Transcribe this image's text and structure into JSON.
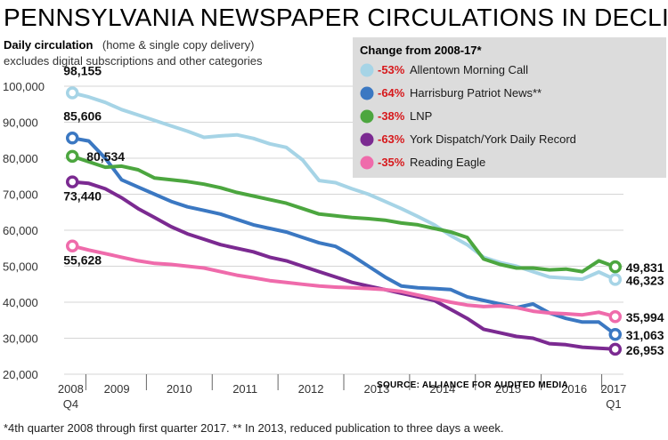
{
  "chart_data": {
    "type": "line",
    "title": "PENNSYLVANIA NEWSPAPER CIRCULATIONS IN DECLINE",
    "subtitle_bold": "Daily circulation",
    "subtitle_rest": "(home & single copy delivery)",
    "subtitle_line2": "excludes digital subscriptions and other categories",
    "ylim": [
      20000,
      100000
    ],
    "y_ticks": [
      20000,
      30000,
      40000,
      50000,
      60000,
      70000,
      80000,
      90000,
      100000
    ],
    "y_tick_labels": [
      "20,000",
      "30,000",
      "40,000",
      "50,000",
      "60,000",
      "70,000",
      "80,000",
      "90,000",
      "100,000"
    ],
    "xlim": [
      2008.75,
      2017.25
    ],
    "x_ticks": [
      {
        "x": 2008.85,
        "label": "2008",
        "sub": "Q4"
      },
      {
        "x": 2009.55,
        "label": "2009",
        "sub": ""
      },
      {
        "x": 2010.5,
        "label": "2010",
        "sub": ""
      },
      {
        "x": 2011.5,
        "label": "2011",
        "sub": ""
      },
      {
        "x": 2012.5,
        "label": "2012",
        "sub": ""
      },
      {
        "x": 2013.5,
        "label": "2013",
        "sub": ""
      },
      {
        "x": 2014.5,
        "label": "2014",
        "sub": ""
      },
      {
        "x": 2015.5,
        "label": "2015",
        "sub": ""
      },
      {
        "x": 2016.5,
        "label": "2016",
        "sub": ""
      },
      {
        "x": 2017.1,
        "label": "2017",
        "sub": "Q1"
      }
    ],
    "x_dividers": [
      2009.08,
      2010.0,
      2011.0,
      2012.0,
      2013.0,
      2014.0,
      2015.0,
      2016.0,
      2016.92
    ],
    "x": [
      2008.875,
      2009.125,
      2009.375,
      2009.625,
      2009.875,
      2010.125,
      2010.375,
      2010.625,
      2010.875,
      2011.125,
      2011.375,
      2011.625,
      2011.875,
      2012.125,
      2012.375,
      2012.625,
      2012.875,
      2013.125,
      2013.375,
      2013.625,
      2013.875,
      2014.125,
      2014.375,
      2014.625,
      2014.875,
      2015.125,
      2015.375,
      2015.625,
      2015.875,
      2016.125,
      2016.375,
      2016.625,
      2016.875,
      2017.125
    ],
    "series": [
      {
        "name": "Allentown Morning Call",
        "color": "#a6d4e6",
        "pct": "-53%",
        "values": [
          98155,
          97000,
          95500,
          93500,
          92000,
          90500,
          89000,
          87500,
          85800,
          86200,
          86500,
          85500,
          84000,
          83000,
          79500,
          73800,
          73200,
          71500,
          70000,
          68000,
          66000,
          63800,
          61500,
          58500,
          56000,
          52500,
          51000,
          50000,
          48500,
          47000,
          46700,
          46400,
          48400,
          46323
        ],
        "start_label": "98,155",
        "end_label": "46,323"
      },
      {
        "name": "Harrisburg Patriot News**",
        "color": "#3b78c2",
        "pct": "-64%",
        "values": [
          85606,
          84800,
          80000,
          74000,
          72000,
          70000,
          68000,
          66500,
          65500,
          64500,
          63000,
          61500,
          60500,
          59500,
          58000,
          56500,
          55500,
          53000,
          50000,
          47000,
          44500,
          44000,
          43800,
          43500,
          41500,
          40500,
          39500,
          38500,
          39500,
          37000,
          35500,
          34500,
          34500,
          31063
        ],
        "start_label": "85,606",
        "end_label": "31,063"
      },
      {
        "name": "LNP",
        "color": "#4ca63f",
        "pct": "-38%",
        "values": [
          80534,
          79000,
          77500,
          77800,
          76800,
          74500,
          74000,
          73500,
          72800,
          71800,
          70500,
          69500,
          68500,
          67500,
          66000,
          64500,
          64000,
          63500,
          63200,
          62800,
          62000,
          61500,
          60500,
          59500,
          58000,
          52000,
          50500,
          49500,
          49500,
          49000,
          49200,
          48500,
          51500,
          49831
        ],
        "start_label": "80,534",
        "end_label": "49,831"
      },
      {
        "name": "York Dispatch/York Daily Record",
        "color": "#7b2a91",
        "pct": "-63%",
        "values": [
          73440,
          73000,
          71500,
          69000,
          66000,
          63500,
          61000,
          59000,
          57500,
          56000,
          55000,
          54000,
          52500,
          51500,
          50000,
          48500,
          47000,
          45500,
          44500,
          43500,
          42500,
          41500,
          40500,
          38000,
          35500,
          32500,
          31500,
          30500,
          30000,
          28500,
          28200,
          27500,
          27200,
          26953
        ],
        "start_label": "73,440",
        "end_label": "26,953"
      },
      {
        "name": "Reading Eagle",
        "color": "#ef6bab",
        "pct": "-35%",
        "values": [
          55628,
          54500,
          53500,
          52500,
          51500,
          50800,
          50500,
          50000,
          49500,
          48500,
          47500,
          46800,
          46000,
          45500,
          45000,
          44500,
          44200,
          44000,
          43800,
          43500,
          43000,
          42000,
          41000,
          40000,
          39200,
          38800,
          39000,
          38500,
          37500,
          37000,
          36800,
          36500,
          37200,
          35994
        ],
        "start_label": "55,628",
        "end_label": "35,994"
      }
    ],
    "legend_title": "Change from 2008-17*",
    "legend_placement": "top-right",
    "source": "SOURCE: ALLIANCE FOR AUDITED MEDIA",
    "footnote": "*4th quarter 2008 through first quarter 2017.   ** In 2013, reduced publication to three days a week."
  }
}
